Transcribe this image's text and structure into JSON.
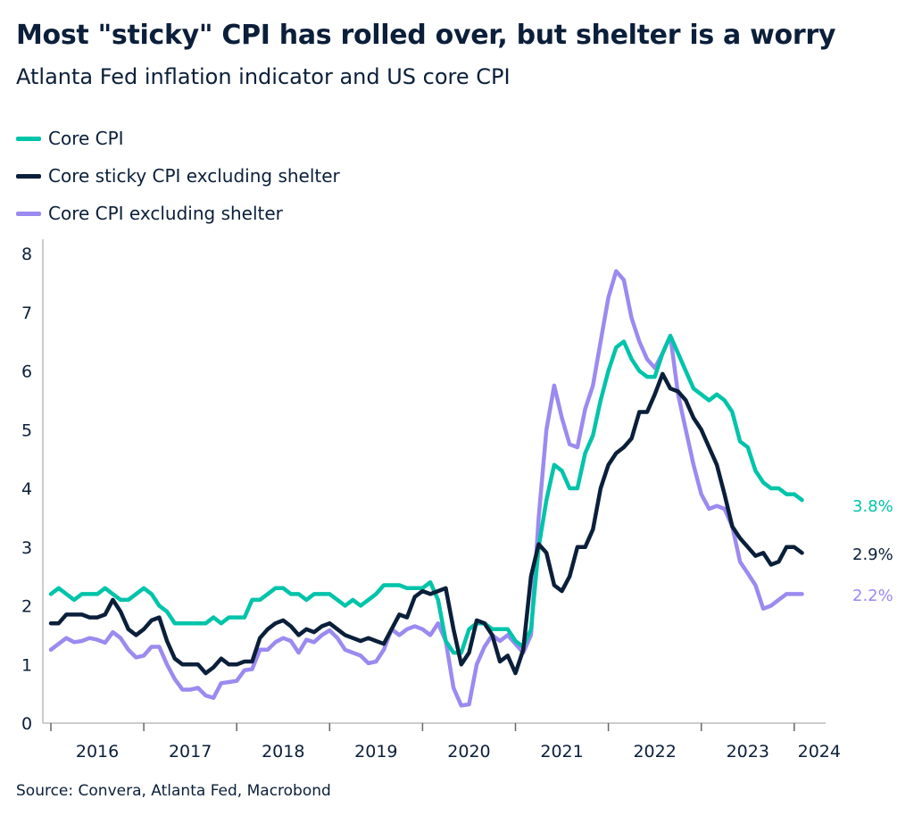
{
  "title": "Most \"sticky\" CPI has rolled over, but shelter is a worry",
  "subtitle": "Atlanta Fed inflation indicator and US core CPI",
  "source": "Source: Convera, Atlanta Fed, Macrobond",
  "chart_data": {
    "type": "line",
    "title": "Most \"sticky\" CPI has rolled over, but shelter is a worry",
    "subtitle": "Atlanta Fed inflation indicator and US core CPI",
    "xlabel": "",
    "ylabel": "",
    "ylim": [
      0,
      8
    ],
    "yticks": [
      "0",
      "1",
      "2",
      "3",
      "4",
      "5",
      "6",
      "7",
      "8"
    ],
    "xticks": [
      "2016",
      "2017",
      "2018",
      "2019",
      "2020",
      "2021",
      "2022",
      "2023",
      "2024"
    ],
    "grid": false,
    "legend": "top-left",
    "x": [
      "2016-01",
      "2016-02",
      "2016-03",
      "2016-04",
      "2016-05",
      "2016-06",
      "2016-07",
      "2016-08",
      "2016-09",
      "2016-10",
      "2016-11",
      "2016-12",
      "2017-01",
      "2017-02",
      "2017-03",
      "2017-04",
      "2017-05",
      "2017-06",
      "2017-07",
      "2017-08",
      "2017-09",
      "2017-10",
      "2017-11",
      "2017-12",
      "2018-01",
      "2018-02",
      "2018-03",
      "2018-04",
      "2018-05",
      "2018-06",
      "2018-07",
      "2018-08",
      "2018-09",
      "2018-10",
      "2018-11",
      "2018-12",
      "2019-01",
      "2019-02",
      "2019-03",
      "2019-04",
      "2019-05",
      "2019-06",
      "2019-07",
      "2019-08",
      "2019-09",
      "2019-10",
      "2019-11",
      "2019-12",
      "2020-01",
      "2020-02",
      "2020-03",
      "2020-04",
      "2020-05",
      "2020-06",
      "2020-07",
      "2020-08",
      "2020-09",
      "2020-10",
      "2020-11",
      "2020-12",
      "2021-01",
      "2021-02",
      "2021-03",
      "2021-04",
      "2021-05",
      "2021-06",
      "2021-07",
      "2021-08",
      "2021-09",
      "2021-10",
      "2021-11",
      "2021-12",
      "2022-01",
      "2022-02",
      "2022-03",
      "2022-04",
      "2022-05",
      "2022-06",
      "2022-07",
      "2022-08",
      "2022-09",
      "2022-10",
      "2022-11",
      "2022-12",
      "2023-01",
      "2023-02",
      "2023-03",
      "2023-04",
      "2023-05",
      "2023-06",
      "2023-07",
      "2023-08",
      "2023-09",
      "2023-10",
      "2023-11",
      "2023-12",
      "2024-01",
      "2024-02"
    ],
    "series": [
      {
        "name": "Core CPI",
        "color": "#00c4aa",
        "end_label": "3.8%",
        "values": [
          2.2,
          2.3,
          2.2,
          2.1,
          2.2,
          2.2,
          2.2,
          2.3,
          2.2,
          2.1,
          2.1,
          2.2,
          2.3,
          2.2,
          2.0,
          1.9,
          1.7,
          1.7,
          1.7,
          1.7,
          1.7,
          1.8,
          1.7,
          1.8,
          1.8,
          1.8,
          2.1,
          2.1,
          2.2,
          2.3,
          2.3,
          2.2,
          2.2,
          2.1,
          2.2,
          2.2,
          2.2,
          2.1,
          2.0,
          2.1,
          2.0,
          2.1,
          2.2,
          2.35,
          2.35,
          2.35,
          2.3,
          2.3,
          2.3,
          2.4,
          2.1,
          1.4,
          1.2,
          1.2,
          1.6,
          1.7,
          1.7,
          1.6,
          1.6,
          1.6,
          1.4,
          1.3,
          1.6,
          3.0,
          3.8,
          4.4,
          4.3,
          4.0,
          4.0,
          4.6,
          4.9,
          5.5,
          6.0,
          6.4,
          6.5,
          6.2,
          6.0,
          5.9,
          5.9,
          6.3,
          6.6,
          6.3,
          6.0,
          5.7,
          5.6,
          5.5,
          5.6,
          5.5,
          5.3,
          4.8,
          4.7,
          4.3,
          4.1,
          4.0,
          4.0,
          3.9,
          3.9,
          3.8
        ]
      },
      {
        "name": "Core sticky CPI excluding shelter",
        "color": "#0a1f3a",
        "end_label": "2.9%",
        "values": [
          1.7,
          1.7,
          1.85,
          1.85,
          1.85,
          1.8,
          1.8,
          1.85,
          2.1,
          1.9,
          1.6,
          1.5,
          1.6,
          1.75,
          1.8,
          1.4,
          1.1,
          1.0,
          1.0,
          1.0,
          0.85,
          0.95,
          1.1,
          1.0,
          1.0,
          1.05,
          1.05,
          1.45,
          1.6,
          1.7,
          1.75,
          1.65,
          1.5,
          1.6,
          1.55,
          1.65,
          1.7,
          1.6,
          1.5,
          1.45,
          1.4,
          1.45,
          1.4,
          1.35,
          1.6,
          1.85,
          1.8,
          2.15,
          2.25,
          2.2,
          2.25,
          2.3,
          1.6,
          1.0,
          1.2,
          1.75,
          1.7,
          1.5,
          1.05,
          1.15,
          0.85,
          1.25,
          2.5,
          3.05,
          2.9,
          2.35,
          2.25,
          2.5,
          3.0,
          3.0,
          3.3,
          4.0,
          4.4,
          4.6,
          4.7,
          4.85,
          5.3,
          5.3,
          5.6,
          5.95,
          5.7,
          5.65,
          5.5,
          5.2,
          5.0,
          4.7,
          4.4,
          3.9,
          3.35,
          3.15,
          3.0,
          2.85,
          2.9,
          2.7,
          2.75,
          3.0,
          3.0,
          2.9
        ]
      },
      {
        "name": "Core CPI excluding shelter",
        "color": "#9b8af0",
        "end_label": "2.2%",
        "values": [
          1.25,
          1.35,
          1.45,
          1.38,
          1.4,
          1.45,
          1.42,
          1.37,
          1.55,
          1.45,
          1.25,
          1.12,
          1.15,
          1.3,
          1.3,
          1.0,
          0.75,
          0.57,
          0.57,
          0.6,
          0.47,
          0.43,
          0.68,
          0.7,
          0.72,
          0.9,
          0.92,
          1.25,
          1.25,
          1.38,
          1.45,
          1.4,
          1.2,
          1.42,
          1.38,
          1.5,
          1.58,
          1.45,
          1.25,
          1.2,
          1.15,
          1.02,
          1.05,
          1.25,
          1.6,
          1.5,
          1.6,
          1.65,
          1.6,
          1.5,
          1.7,
          1.4,
          0.6,
          0.3,
          0.32,
          1.0,
          1.3,
          1.5,
          1.4,
          1.5,
          1.35,
          1.2,
          1.5,
          3.5,
          5.0,
          5.75,
          5.2,
          4.75,
          4.7,
          5.35,
          5.75,
          6.5,
          7.25,
          7.7,
          7.55,
          6.9,
          6.5,
          6.2,
          6.05,
          6.3,
          6.6,
          5.6,
          5.0,
          4.4,
          3.9,
          3.65,
          3.7,
          3.65,
          3.35,
          2.75,
          2.55,
          2.35,
          1.95,
          2.0,
          2.1,
          2.2,
          2.2,
          2.2
        ]
      }
    ]
  }
}
